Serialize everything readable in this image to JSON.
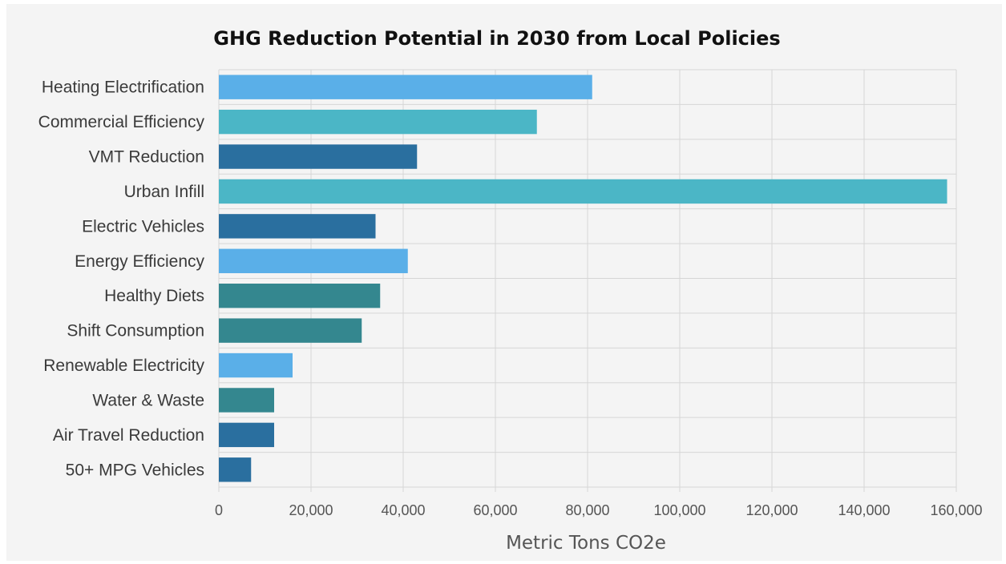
{
  "chart_data": {
    "type": "bar",
    "orientation": "horizontal",
    "title": "GHG Reduction Potential in 2030 from Local Policies",
    "xlabel": "Metric Tons CO2e",
    "ylabel": "",
    "xlim": [
      0,
      160000
    ],
    "xticks": [
      0,
      20000,
      40000,
      60000,
      80000,
      100000,
      120000,
      140000,
      160000
    ],
    "xtick_labels": [
      "0",
      "20,000",
      "40,000",
      "60,000",
      "80,000",
      "100,000",
      "120,000",
      "140,000",
      "160,000"
    ],
    "grid": true,
    "legend": "none",
    "categories": [
      "Heating Electrification",
      "Commercial Efficiency",
      "VMT Reduction",
      "Urban Infill",
      "Electric Vehicles",
      "Energy Efficiency",
      "Healthy Diets",
      "Shift Consumption",
      "Renewable Electricity",
      "Water & Waste",
      "Air Travel Reduction",
      "50+ MPG Vehicles"
    ],
    "values": [
      81000,
      69000,
      43000,
      158000,
      34000,
      41000,
      35000,
      31000,
      16000,
      12000,
      12000,
      7000
    ],
    "colors": [
      "#5aafe8",
      "#4bb6c6",
      "#2a6f9f",
      "#4bb6c6",
      "#2a6f9f",
      "#5aafe8",
      "#34878f",
      "#34878f",
      "#5aafe8",
      "#34878f",
      "#2a6f9f",
      "#2a6f9f"
    ]
  }
}
